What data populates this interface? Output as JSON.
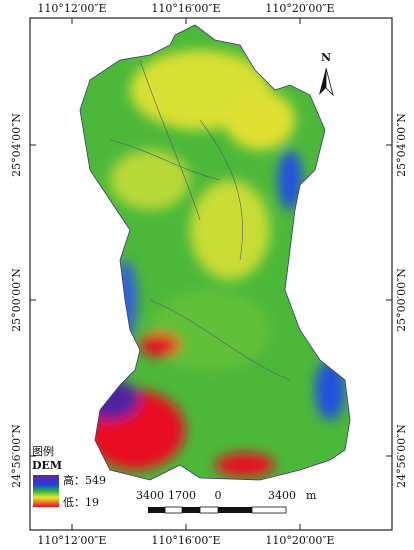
{
  "frame": {
    "top_labels": [
      "110°12′00″E",
      "110°16′00″E",
      "110°20′00″E"
    ],
    "bottom_labels": [
      "110°12′00″E",
      "110°16′00″E",
      "110°20′00″E"
    ],
    "left_labels": [
      "25°04′00″N",
      "25°00′00″N",
      "24°56′00″N"
    ],
    "right_labels": [
      "25°04′00″N",
      "25°00′00″N",
      "24°56′00″N"
    ]
  },
  "north_arrow": {
    "label": "N"
  },
  "legend": {
    "title": "图例",
    "layer": "DEM",
    "high": "高：549",
    "low": "低：19"
  },
  "scale_bar": {
    "labels": [
      "3400",
      "1700",
      "0",
      "3400"
    ],
    "unit": "m"
  }
}
